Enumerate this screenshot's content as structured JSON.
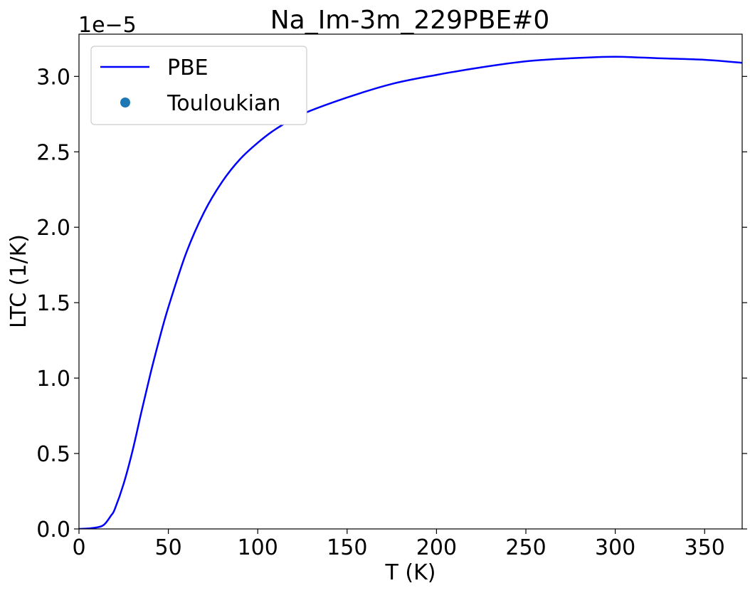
{
  "chart_data": {
    "type": "line",
    "title": "Na_Im-3m_229PBE#0",
    "xlabel": "T (K)",
    "ylabel": "LTC (1/K)",
    "offset_text": "1e−5",
    "xlim": [
      0,
      371
    ],
    "ylim": [
      0,
      3.28
    ],
    "y_scale_note": "values in units of 1e-5 1/K",
    "xticks": [
      0,
      50,
      100,
      150,
      200,
      250,
      300,
      350
    ],
    "xtick_labels": [
      "0",
      "50",
      "100",
      "150",
      "200",
      "250",
      "300",
      "350"
    ],
    "yticks": [
      0,
      0.5,
      1.0,
      1.5,
      2.0,
      2.5,
      3.0
    ],
    "ytick_labels": [
      "0.0",
      "0.5",
      "1.0",
      "1.5",
      "2.0",
      "2.5",
      "3.0"
    ],
    "grid": false,
    "legend": {
      "placement": "top-left",
      "entries": [
        "PBE",
        "Touloukian"
      ]
    },
    "series": [
      {
        "name": "PBE",
        "style": "line",
        "color": "#0000ff",
        "x": [
          0,
          5,
          10,
          13,
          15,
          18,
          20,
          25,
          30,
          35,
          40,
          45,
          50,
          60,
          70,
          80,
          90,
          100,
          110,
          125,
          150,
          175,
          200,
          225,
          250,
          275,
          300,
          325,
          350,
          371
        ],
        "y": [
          0,
          0.003,
          0.01,
          0.02,
          0.04,
          0.09,
          0.13,
          0.3,
          0.52,
          0.78,
          1.03,
          1.26,
          1.47,
          1.83,
          2.1,
          2.3,
          2.45,
          2.56,
          2.65,
          2.75,
          2.86,
          2.95,
          3.01,
          3.06,
          3.1,
          3.12,
          3.13,
          3.12,
          3.11,
          3.09
        ]
      },
      {
        "name": "Touloukian",
        "style": "scatter",
        "color": "#1f77b4",
        "x": [],
        "y": []
      }
    ]
  }
}
